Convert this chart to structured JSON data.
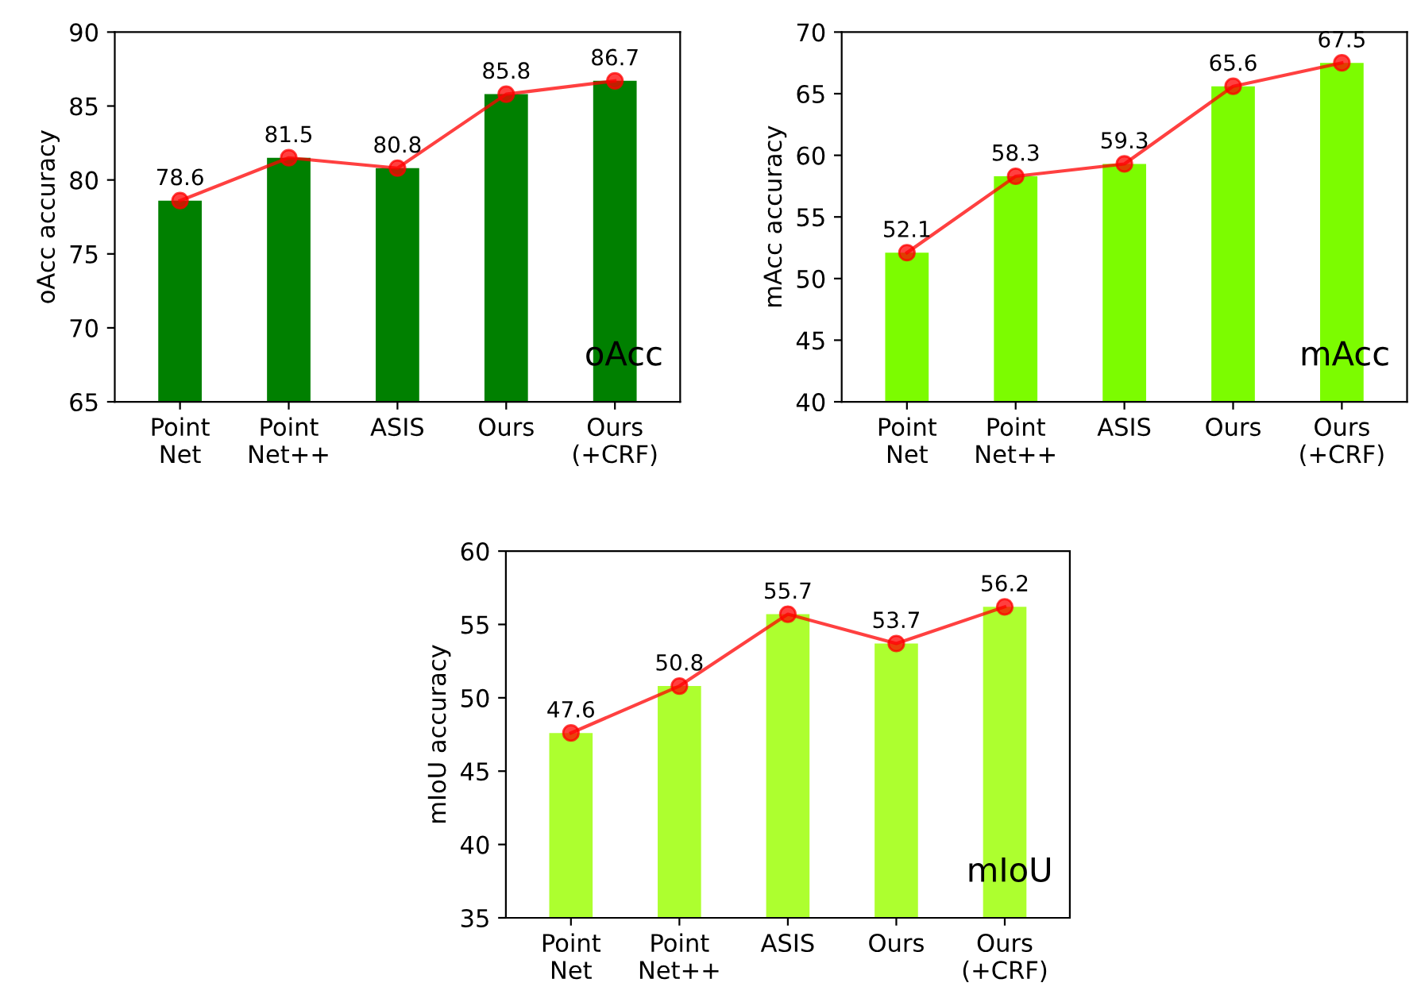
{
  "chart_data": [
    {
      "type": "bar",
      "ylabel": "oAcc accuracy",
      "categories": [
        "Point\nNet",
        "Point\nNet++",
        "ASIS",
        "Ours",
        "Ours\n(+CRF)"
      ],
      "series": [
        {
          "color": "#008000",
          "values": [
            78.6,
            81.5,
            80.8,
            85.8,
            86.7
          ]
        },
        {
          "type": "line",
          "color": "#ff0000",
          "marker": "circle",
          "values": [
            78.6,
            81.5,
            80.8,
            85.8,
            86.7
          ],
          "value_labels": [
            "78.6",
            "81.5",
            "80.8",
            "85.8",
            "86.7"
          ]
        }
      ],
      "ylim": [
        65,
        90
      ],
      "yticks": [
        65,
        70,
        75,
        80,
        85,
        90
      ],
      "annotations": [
        "oAcc"
      ]
    },
    {
      "type": "bar",
      "ylabel": "mAcc accuracy",
      "categories": [
        "Point\nNet",
        "Point\nNet++",
        "ASIS",
        "Ours",
        "Ours\n(+CRF)"
      ],
      "series": [
        {
          "color": "#7cfc00",
          "values": [
            52.1,
            58.3,
            59.3,
            65.6,
            67.5
          ]
        },
        {
          "type": "line",
          "color": "#ff0000",
          "marker": "circle",
          "values": [
            52.1,
            58.3,
            59.3,
            65.6,
            67.5
          ],
          "value_labels": [
            "52.1",
            "58.3",
            "59.3",
            "65.6",
            "67.5"
          ]
        }
      ],
      "ylim": [
        40,
        70
      ],
      "yticks": [
        40,
        45,
        50,
        55,
        60,
        65,
        70
      ],
      "annotations": [
        "mAcc"
      ]
    },
    {
      "type": "bar",
      "ylabel": "mIoU accuracy",
      "categories": [
        "Point\nNet",
        "Point\nNet++",
        "ASIS",
        "Ours",
        "Ours\n(+CRF)"
      ],
      "series": [
        {
          "color": "#adff2f",
          "values": [
            47.6,
            50.8,
            55.7,
            53.7,
            56.2
          ]
        },
        {
          "type": "line",
          "color": "#ff0000",
          "marker": "circle",
          "values": [
            47.6,
            50.8,
            55.7,
            53.7,
            56.2
          ],
          "value_labels": [
            "47.6",
            "50.8",
            "55.7",
            "53.7",
            "56.2"
          ]
        }
      ],
      "ylim": [
        35,
        60
      ],
      "yticks": [
        35,
        40,
        45,
        50,
        55,
        60
      ],
      "annotations": [
        "mIoU"
      ]
    }
  ]
}
